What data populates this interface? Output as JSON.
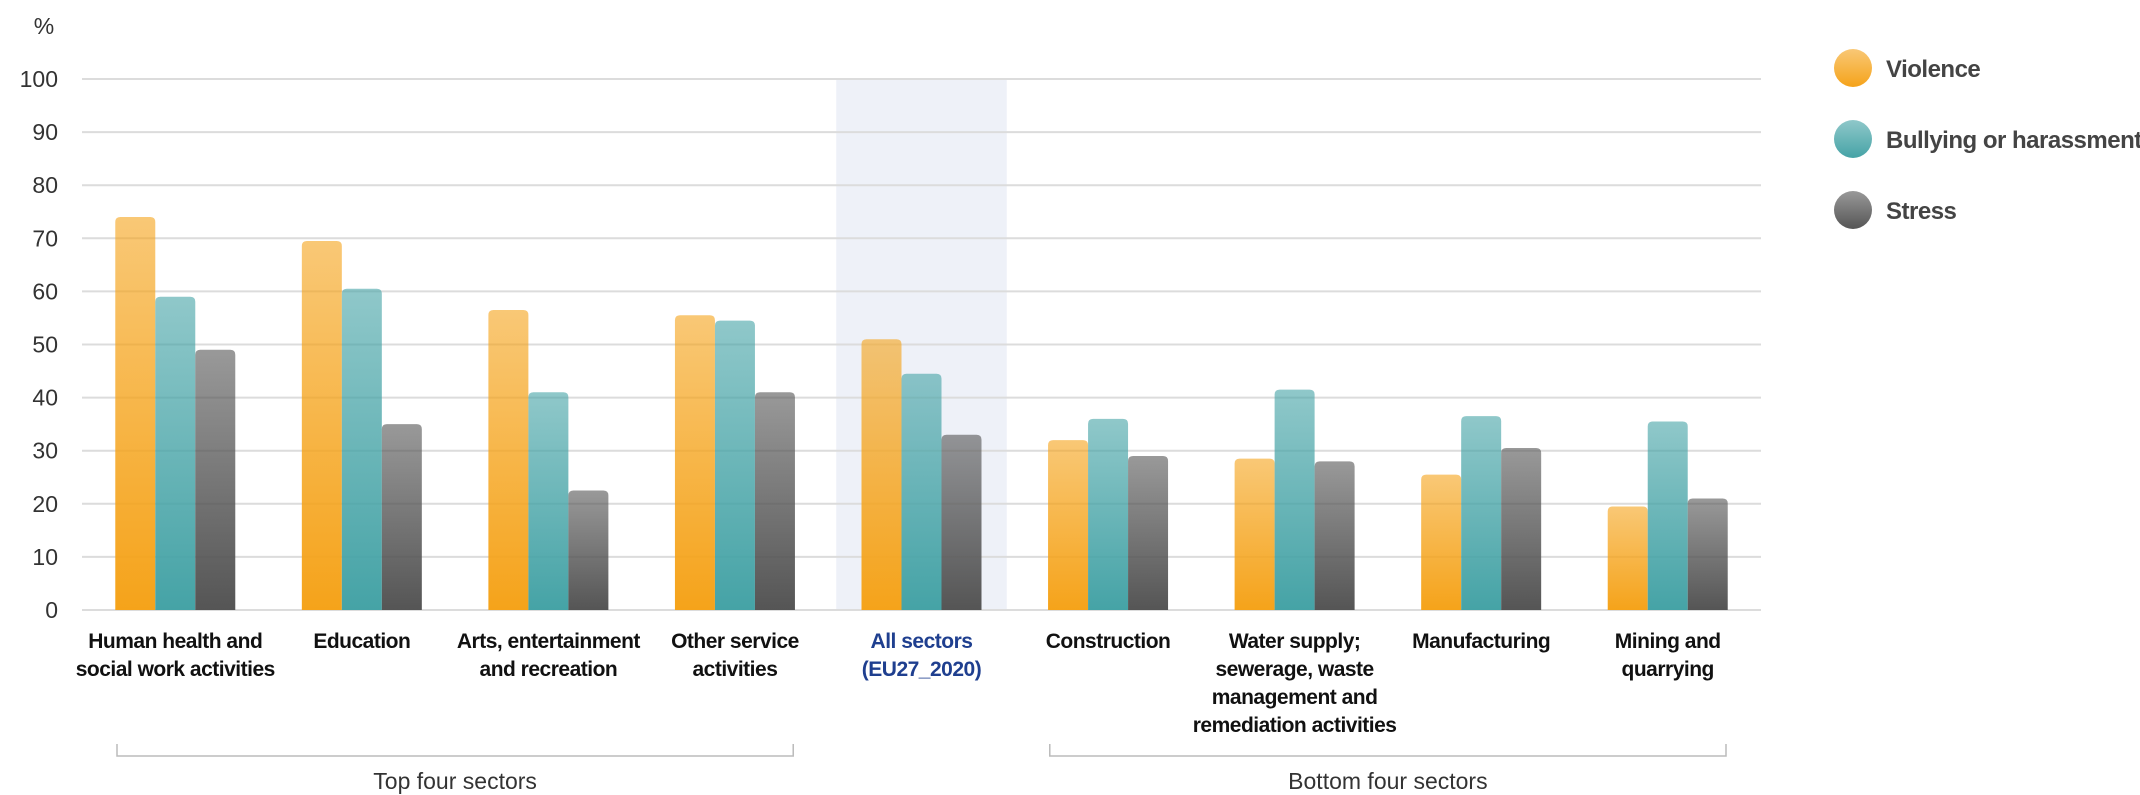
{
  "chart_data": {
    "type": "bar",
    "y_unit": "%",
    "categories": [
      "Human health and\nsocial work activities",
      "Education",
      "Arts, entertainment\nand recreation",
      "Other service\nactivities",
      "All sectors\n(EU27_2020)",
      "Construction",
      "Water supply;\nsewerage, waste\nmanagement and\nremediation activities",
      "Manufacturing",
      "Mining and\nquarrying"
    ],
    "series": [
      {
        "name": "Violence",
        "color": "#f5a31a",
        "values": [
          74,
          69.5,
          56.5,
          55.5,
          51,
          32,
          28.5,
          25.5,
          19.5
        ]
      },
      {
        "name": "Bullying or harassment",
        "color": "#45a3a6",
        "values": [
          59,
          60.5,
          41,
          54.5,
          44.5,
          36,
          41.5,
          36.5,
          35.5
        ]
      },
      {
        "name": "Stress",
        "color": "#555555",
        "values": [
          49,
          35,
          22.5,
          41,
          33,
          29,
          28,
          30.5,
          21
        ]
      }
    ],
    "highlight_index": 4,
    "groups": [
      {
        "label": "Top four sectors",
        "from": 0,
        "to": 3
      },
      {
        "label": "Bottom four sectors",
        "from": 5,
        "to": 8
      }
    ],
    "ylim": [
      0,
      100
    ],
    "yticks": [
      0,
      10,
      20,
      30,
      40,
      50,
      60,
      70,
      80,
      90,
      100
    ],
    "grid": true,
    "legend": "right"
  }
}
